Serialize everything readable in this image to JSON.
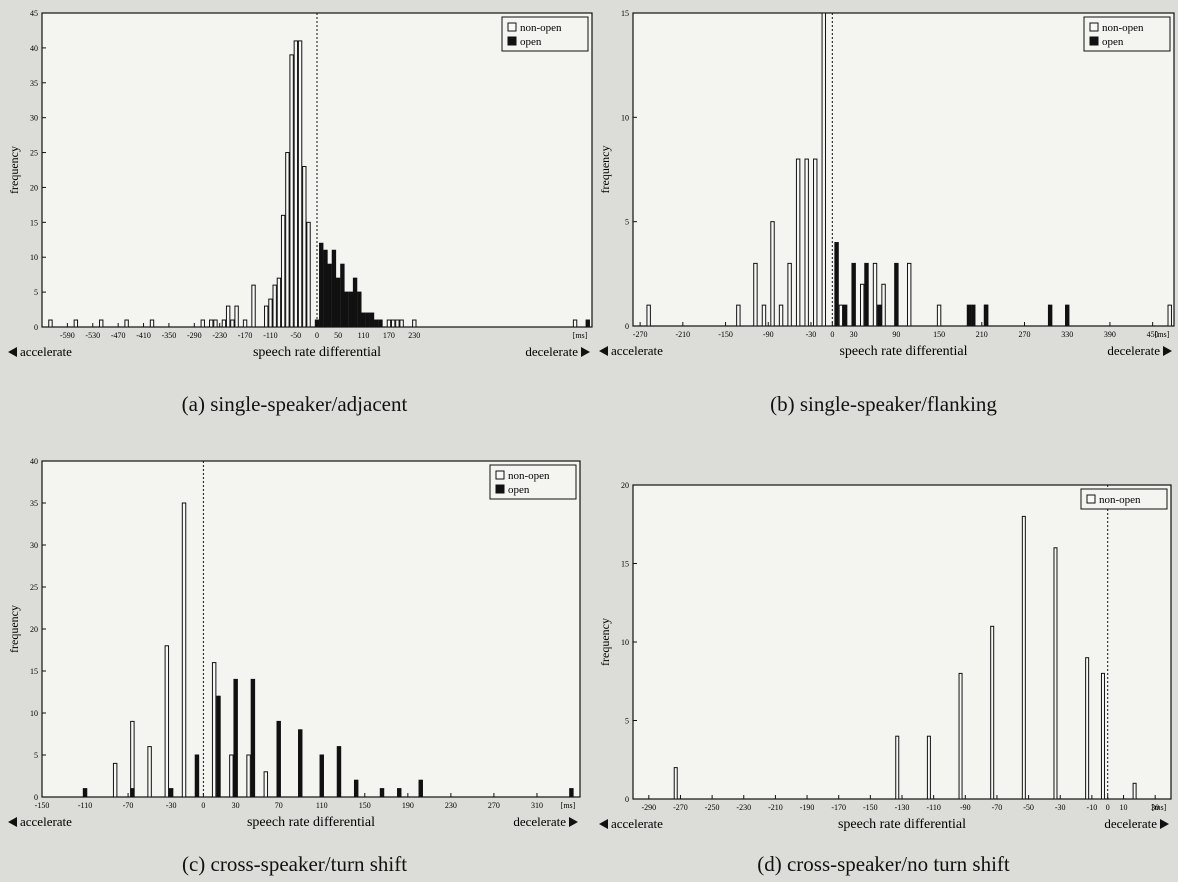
{
  "chart_data": [
    {
      "type": "bar",
      "caption": "(a) single-speaker/adjacent",
      "xlabel": "speech rate differential",
      "ylabel": "frequency",
      "left_note": "accelerate",
      "right_note": "decelerate",
      "unit": "[ms]",
      "ylim": [
        0,
        45
      ],
      "yticks": [
        0,
        5,
        10,
        15,
        20,
        25,
        30,
        35,
        40,
        45
      ],
      "xlim": [
        -650,
        650
      ],
      "xticks": [
        "-590",
        "-530",
        "-470",
        "-410",
        "-350",
        "-290",
        "-230",
        "-170",
        "-110",
        "-50",
        "0",
        "50",
        "110",
        "170",
        "230"
      ],
      "xtick_values": [
        -590,
        -530,
        -470,
        -410,
        -350,
        -290,
        -230,
        -170,
        -110,
        -50,
        0,
        50,
        110,
        170,
        230
      ],
      "divider": 0,
      "bin_width": 10,
      "legend": [
        "non-open",
        "open"
      ],
      "legend_position": "top-right",
      "series": [
        {
          "name": "non-open",
          "x": [
            -630,
            -570,
            -510,
            -450,
            -390,
            -270,
            -250,
            -240,
            -220,
            -210,
            -200,
            -190,
            -170,
            -150,
            -120,
            -110,
            -100,
            -90,
            -80,
            -70,
            -60,
            -50,
            -40,
            -30,
            -20,
            170,
            180,
            190,
            200,
            230,
            610
          ],
          "values": [
            1,
            1,
            1,
            1,
            1,
            1,
            1,
            1,
            1,
            3,
            1,
            3,
            1,
            6,
            3,
            4,
            6,
            7,
            16,
            25,
            39,
            41,
            41,
            23,
            15,
            1,
            1,
            1,
            1,
            1,
            1
          ]
        },
        {
          "name": "open",
          "x": [
            0,
            10,
            20,
            30,
            40,
            50,
            60,
            70,
            80,
            90,
            100,
            110,
            120,
            130,
            140,
            150,
            640
          ],
          "values": [
            1,
            12,
            11,
            9,
            11,
            7,
            9,
            5,
            5,
            7,
            5,
            2,
            2,
            2,
            1,
            1,
            1
          ]
        }
      ]
    },
    {
      "type": "bar",
      "caption": "(b) single-speaker/flanking",
      "xlabel": "speech rate differential",
      "ylabel": "frequency",
      "left_note": "accelerate",
      "right_note": "decelerate",
      "unit": "[ms]",
      "ylim": [
        0,
        15
      ],
      "yticks": [
        0,
        5,
        10,
        15
      ],
      "xlim": [
        -280,
        480
      ],
      "xticks": [
        "-270",
        "-210",
        "-150",
        "-90",
        "-30",
        "0",
        "30",
        "90",
        "150",
        "210",
        "270",
        "330",
        "390",
        "450"
      ],
      "xtick_values": [
        -270,
        -210,
        -150,
        -90,
        -30,
        0,
        30,
        90,
        150,
        210,
        270,
        330,
        390,
        450
      ],
      "divider": 0,
      "bin_width": 6,
      "legend": [
        "non-open",
        "open"
      ],
      "legend_position": "top-right",
      "series": [
        {
          "name": "non-open",
          "x": [
            -258,
            -132,
            -108,
            -96,
            -84,
            -72,
            -60,
            -48,
            -36,
            -24,
            -12,
            12,
            42,
            60,
            72,
            108,
            150,
            216,
            474
          ],
          "values": [
            1,
            1,
            3,
            1,
            5,
            1,
            3,
            8,
            8,
            8,
            15,
            1,
            2,
            3,
            2,
            3,
            1,
            1,
            1
          ]
        },
        {
          "name": "open",
          "x": [
            6,
            18,
            30,
            48,
            66,
            90,
            192,
            198,
            216,
            306,
            330
          ],
          "values": [
            4,
            1,
            3,
            3,
            1,
            3,
            1,
            1,
            1,
            1,
            1
          ]
        }
      ]
    },
    {
      "type": "bar",
      "caption": "(c) cross-speaker/turn shift",
      "xlabel": "speech rate differential",
      "ylabel": "frequency",
      "left_note": "accelerate",
      "right_note": "decelerate",
      "unit": "[ms]",
      "ylim": [
        0,
        40
      ],
      "yticks": [
        0,
        5,
        10,
        15,
        20,
        25,
        30,
        35,
        40
      ],
      "xlim": [
        -150,
        350
      ],
      "xticks": [
        "-150",
        "-110",
        "-70",
        "-30",
        "0",
        "30",
        "70",
        "110",
        "150",
        "190",
        "230",
        "270",
        "310"
      ],
      "xtick_values": [
        -150,
        -110,
        -70,
        -30,
        0,
        30,
        70,
        110,
        150,
        190,
        230,
        270,
        310
      ],
      "divider": 0,
      "bin_width": 4,
      "legend": [
        "non-open",
        "open"
      ],
      "legend_position": "top-right",
      "series": [
        {
          "name": "non-open",
          "x": [
            -82,
            -66,
            -50,
            -34,
            -18,
            10,
            26,
            42,
            58
          ],
          "values": [
            4,
            9,
            6,
            18,
            35,
            16,
            5,
            5,
            3
          ]
        },
        {
          "name": "open",
          "x": [
            -110,
            -66,
            -30,
            -6,
            14,
            30,
            46,
            70,
            90,
            110,
            126,
            142,
            166,
            182,
            202,
            342
          ],
          "values": [
            1,
            1,
            1,
            5,
            12,
            14,
            14,
            9,
            8,
            5,
            6,
            2,
            1,
            1,
            2,
            1
          ]
        }
      ]
    },
    {
      "type": "bar",
      "caption": "(d) cross-speaker/no turn shift",
      "xlabel": "speech rate differential",
      "ylabel": "frequency",
      "left_note": "accelerate",
      "right_note": "decelerate",
      "unit": "[ms]",
      "ylim": [
        0,
        20
      ],
      "yticks": [
        0,
        5,
        10,
        15,
        20
      ],
      "xlim": [
        -300,
        40
      ],
      "xticks": [
        "-290",
        "-270",
        "-250",
        "-230",
        "-210",
        "-190",
        "-170",
        "-150",
        "-130",
        "-110",
        "-90",
        "-70",
        "-50",
        "-30",
        "-10",
        "0",
        "10",
        "30"
      ],
      "xtick_values": [
        -290,
        -270,
        -250,
        -230,
        -210,
        -190,
        -170,
        -150,
        -130,
        -110,
        -90,
        -70,
        -50,
        -30,
        -10,
        0,
        10,
        30
      ],
      "divider": 0,
      "bin_width": 2,
      "legend": [
        "non-open"
      ],
      "legend_position": "top-right",
      "series": [
        {
          "name": "non-open",
          "x": [
            -273,
            -133,
            -113,
            -93,
            -73,
            -53,
            -33,
            -13,
            -3,
            17
          ],
          "values": [
            2,
            4,
            4,
            8,
            11,
            18,
            16,
            9,
            8,
            1
          ]
        }
      ]
    }
  ]
}
